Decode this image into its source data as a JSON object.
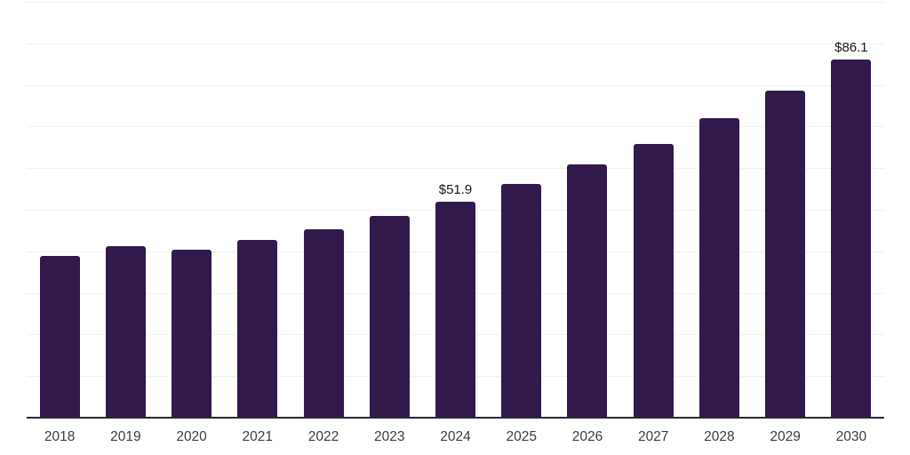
{
  "chart_data": {
    "type": "bar",
    "categories": [
      "2018",
      "2019",
      "2020",
      "2021",
      "2022",
      "2023",
      "2024",
      "2025",
      "2026",
      "2027",
      "2028",
      "2029",
      "2030"
    ],
    "values": [
      38.9,
      41.3,
      40.4,
      42.7,
      45.3,
      48.5,
      51.9,
      56.2,
      60.9,
      65.8,
      72.0,
      78.6,
      86.1
    ],
    "data_labels": {
      "2024": "$51.9",
      "2030": "$86.1"
    },
    "title": "",
    "xlabel": "",
    "ylabel": "",
    "ylim": [
      0,
      100
    ],
    "grid": true,
    "grid_step": 10,
    "legend": false,
    "colors": {
      "bar": "#32194c",
      "axis_line": "#2b2b2b",
      "gridline": "#f0eff4",
      "tick_label": "#3d3d3d",
      "value_label": "#161616",
      "background": "#ffffff"
    }
  }
}
